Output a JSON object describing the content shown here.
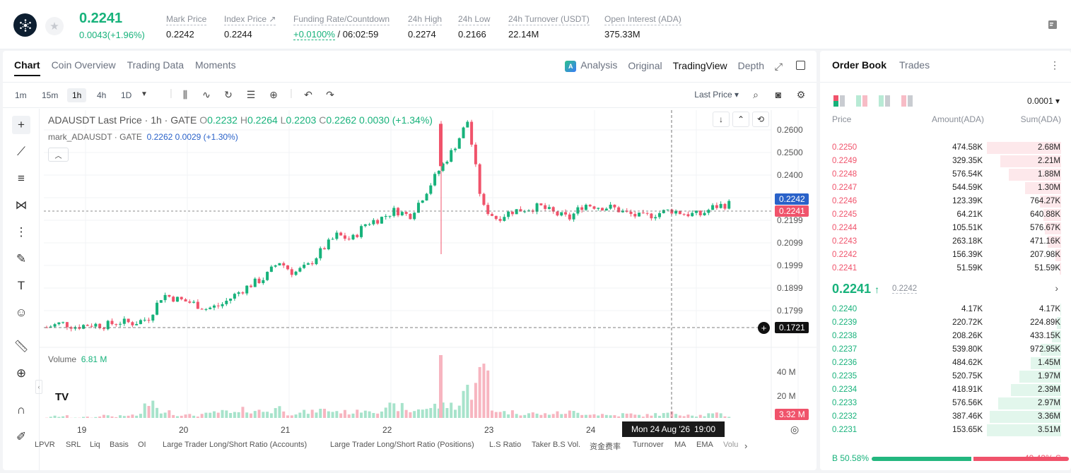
{
  "ticker": {
    "last_price": "0.2241",
    "change": "0.0043(+1.96%)",
    "stats": [
      {
        "label": "Mark Price",
        "value": "0.2242"
      },
      {
        "label": "Index Price ↗",
        "value": "0.2244"
      },
      {
        "label": "Funding Rate/Countdown",
        "value_green": "+0.0100%",
        "value": " / 06:02:59"
      },
      {
        "label": "24h High",
        "value": "0.2274"
      },
      {
        "label": "24h Low",
        "value": "0.2166"
      },
      {
        "label": "24h Turnover (USDT)",
        "value": "22.14M"
      },
      {
        "label": "Open Interest (ADA)",
        "value": "375.33M"
      }
    ]
  },
  "chart_tabs": [
    "Chart",
    "Coin Overview",
    "Trading Data",
    "Moments"
  ],
  "view_tabs": {
    "analysis": "Analysis",
    "original": "Original",
    "tradingview": "TradingView",
    "depth": "Depth"
  },
  "timeframes": [
    "1m",
    "15m",
    "1h",
    "4h",
    "1D"
  ],
  "price_source": "Last Price",
  "legend": {
    "symbol": "ADAUSDT Last Price · 1h · GATE",
    "o_label": "O",
    "o": "0.2232",
    "h_label": "H",
    "h": "0.2264",
    "l_label": "L",
    "l": "0.2203",
    "c_label": "C",
    "c": "0.2262",
    "chg": "0.0030 (+1.34%)",
    "mark_symbol": "mark_ADAUSDT · GATE",
    "mark_value": "0.2262",
    "mark_chg": "0.0029 (+1.30%)"
  },
  "volume_legend": {
    "label": "Volume",
    "value": "6.81 M"
  },
  "price_axis": [
    "0.2600",
    "0.2500",
    "0.2400",
    "0.2199",
    "0.2099",
    "0.1999",
    "0.1899",
    "0.1799"
  ],
  "vol_axis": [
    "40 M",
    "20 M"
  ],
  "tags": {
    "mark": "0.2242",
    "last": "0.2241",
    "cursor": "0.1721",
    "volume": "3.32 M"
  },
  "time_axis": [
    "19",
    "20",
    "21",
    "22",
    "23",
    "24"
  ],
  "cursor_time": {
    "date": "Mon 24 Aug '26",
    "time": "19:00"
  },
  "indicators": [
    "LPVR",
    "SRL",
    "Liq",
    "Basis",
    "OI",
    "Large Trader Long/Short Ratio (Accounts)",
    "Large Trader Long/Short Ratio (Positions)",
    "L.S Ratio",
    "Taker B.S Vol.",
    "资金费率",
    "Turnover",
    "MA",
    "EMA",
    "Volu"
  ],
  "chart_data": {
    "type": "candlestick",
    "symbol": "ADAUSDT",
    "interval": "1h",
    "x": [
      "19",
      "20",
      "21",
      "22",
      "23",
      "24"
    ],
    "ylim": [
      0.1721,
      0.26
    ],
    "volume_ylim": [
      0,
      50
    ],
    "marks": {
      "high": 0.259,
      "low": 0.1721,
      "last": 0.2241,
      "mark": 0.2242
    },
    "close_path": [
      0.1722,
      0.174,
      0.1725,
      0.1735,
      0.173,
      0.1745,
      0.174,
      0.176,
      0.186,
      0.184,
      0.1825,
      0.18,
      0.1815,
      0.186,
      0.19,
      0.193,
      0.2,
      0.195,
      0.198,
      0.205,
      0.211,
      0.209,
      0.216,
      0.218,
      0.2215,
      0.219,
      0.228,
      0.238,
      0.247,
      0.259,
      0.223,
      0.218,
      0.221,
      0.222,
      0.223,
      0.22,
      0.218,
      0.224,
      0.223,
      0.2225,
      0.22,
      0.2185,
      0.22,
      0.2215,
      0.22,
      0.2195,
      0.223,
      0.2241
    ],
    "volume_m": [
      2,
      3,
      2,
      2,
      4,
      3,
      4,
      16,
      9,
      5,
      4,
      5,
      7,
      6,
      9,
      8,
      11,
      6,
      7,
      9,
      8,
      7,
      10,
      9,
      12,
      8,
      11,
      13,
      14,
      28,
      45,
      9,
      7,
      6,
      5,
      6,
      7,
      6,
      5,
      4,
      5,
      4,
      5,
      6,
      5,
      4,
      5,
      3.32
    ]
  },
  "orderbook": {
    "tabs": [
      "Order Book",
      "Trades"
    ],
    "precision": "0.0001",
    "headers": {
      "price": "Price",
      "amount": "Amount(ADA)",
      "sum": "Sum(ADA)"
    },
    "asks": [
      {
        "price": "0.2250",
        "amount": "474.58K",
        "sum": "2.68M",
        "depth": 1.0
      },
      {
        "price": "0.2249",
        "amount": "329.35K",
        "sum": "2.21M",
        "depth": 0.82
      },
      {
        "price": "0.2248",
        "amount": "576.54K",
        "sum": "1.88M",
        "depth": 0.7
      },
      {
        "price": "0.2247",
        "amount": "544.59K",
        "sum": "1.30M",
        "depth": 0.49
      },
      {
        "price": "0.2246",
        "amount": "123.39K",
        "sum": "764.27K",
        "depth": 0.29
      },
      {
        "price": "0.2245",
        "amount": "64.21K",
        "sum": "640.88K",
        "depth": 0.24
      },
      {
        "price": "0.2244",
        "amount": "105.51K",
        "sum": "576.67K",
        "depth": 0.22
      },
      {
        "price": "0.2243",
        "amount": "263.18K",
        "sum": "471.16K",
        "depth": 0.18
      },
      {
        "price": "0.2242",
        "amount": "156.39K",
        "sum": "207.98K",
        "depth": 0.08
      },
      {
        "price": "0.2241",
        "amount": "51.59K",
        "sum": "51.59K",
        "depth": 0.02
      }
    ],
    "mid": {
      "price": "0.2241",
      "arrow": "↑",
      "mark": "0.2242"
    },
    "bids": [
      {
        "price": "0.2240",
        "amount": "4.17K",
        "sum": "4.17K",
        "depth": 0.01
      },
      {
        "price": "0.2239",
        "amount": "220.72K",
        "sum": "224.89K",
        "depth": 0.06
      },
      {
        "price": "0.2238",
        "amount": "208.26K",
        "sum": "433.15K",
        "depth": 0.12
      },
      {
        "price": "0.2237",
        "amount": "539.80K",
        "sum": "972.95K",
        "depth": 0.28
      },
      {
        "price": "0.2236",
        "amount": "484.62K",
        "sum": "1.45M",
        "depth": 0.41
      },
      {
        "price": "0.2235",
        "amount": "520.75K",
        "sum": "1.97M",
        "depth": 0.56
      },
      {
        "price": "0.2234",
        "amount": "418.91K",
        "sum": "2.39M",
        "depth": 0.68
      },
      {
        "price": "0.2233",
        "amount": "576.56K",
        "sum": "2.97M",
        "depth": 0.85
      },
      {
        "price": "0.2232",
        "amount": "387.46K",
        "sum": "3.36M",
        "depth": 0.96
      },
      {
        "price": "0.2231",
        "amount": "153.65K",
        "sum": "3.51M",
        "depth": 1.0
      }
    ],
    "ratio": {
      "buy_label": "B",
      "buy": "50.58%",
      "sell": "49.42%",
      "sell_label": "S",
      "buy_fraction": 0.5058
    }
  },
  "colors": {
    "up": "#17b27b",
    "down": "#f0536b",
    "accent": "#2a62c9"
  }
}
